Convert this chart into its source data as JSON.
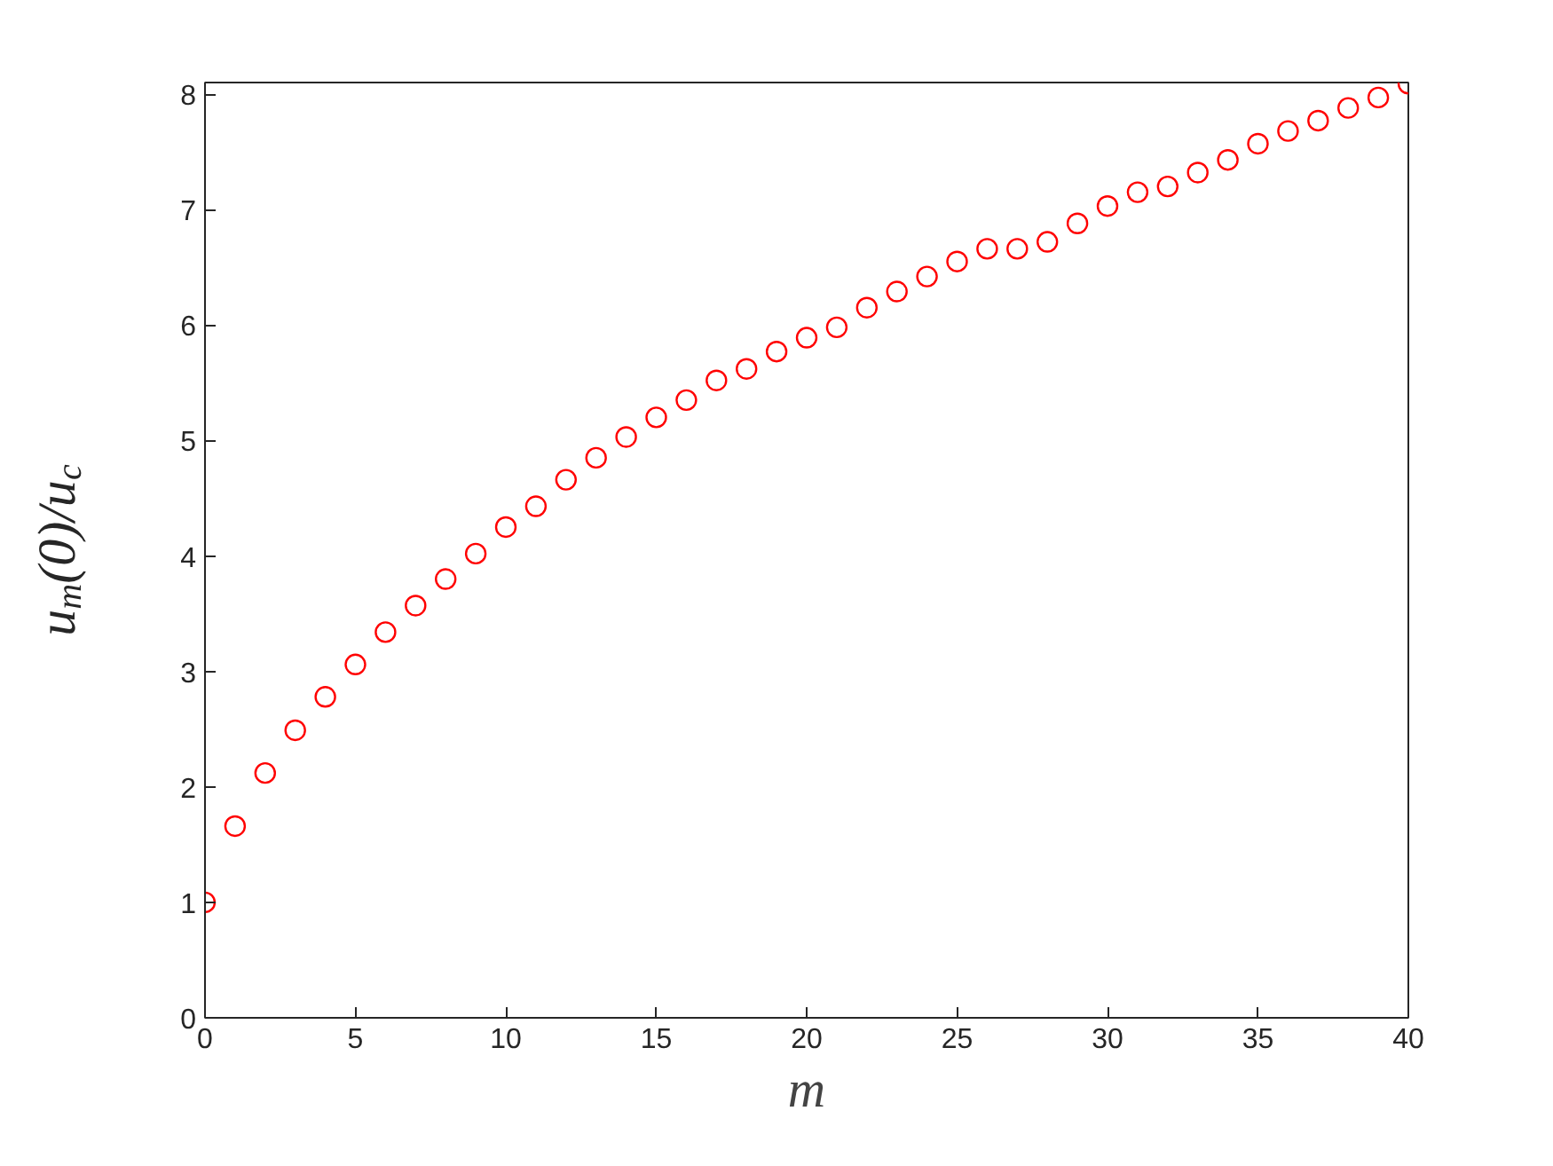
{
  "chart_data": {
    "type": "scatter",
    "xlabel": "m",
    "ylabel": "u$_{m}$(0)/u$_{c}$",
    "x": [
      0,
      1,
      2,
      3,
      4,
      5,
      6,
      7,
      8,
      9,
      10,
      11,
      12,
      13,
      14,
      15,
      16,
      17,
      18,
      19,
      20,
      21,
      22,
      23,
      24,
      25,
      26,
      27,
      28,
      29,
      30,
      31,
      32,
      33,
      34,
      35,
      36,
      37,
      38,
      39,
      40
    ],
    "series": [
      {
        "color": "#ff0000",
        "values": [
          1.0,
          1.66,
          2.12,
          2.49,
          2.78,
          3.06,
          3.34,
          3.57,
          3.8,
          4.02,
          4.25,
          4.43,
          4.66,
          4.85,
          5.03,
          5.2,
          5.35,
          5.52,
          5.62,
          5.77,
          5.89,
          5.98,
          6.15,
          6.29,
          6.42,
          6.55,
          6.66,
          6.66,
          6.72,
          6.88,
          7.03,
          7.15,
          7.2,
          7.32,
          7.43,
          7.57,
          7.68,
          7.77,
          7.88,
          7.97,
          8.09
        ]
      }
    ],
    "xlim": [
      0,
      40
    ],
    "ylim": [
      0,
      8.1
    ],
    "xticks": [
      0,
      5,
      10,
      15,
      20,
      25,
      30,
      35,
      40
    ],
    "yticks": [
      0,
      1,
      2,
      3,
      4,
      5,
      6,
      7,
      8
    ],
    "marker": "circle"
  }
}
